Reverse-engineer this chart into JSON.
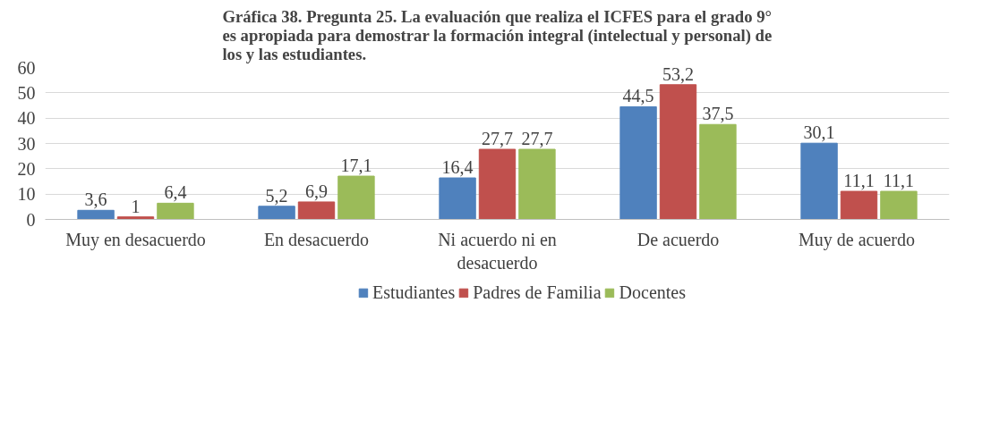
{
  "chart_data": {
    "type": "bar",
    "title": "Gráfica 38. Pregunta 25. La evaluación que realiza el ICFES para el grado 9° es apropiada para demostrar la formación integral (intelectual y personal) de los y las estudiantes.",
    "categories": [
      "Muy en desacuerdo",
      "En desacuerdo",
      "Ni acuerdo ni en desacuerdo",
      "De acuerdo",
      "Muy  de acuerdo"
    ],
    "series": [
      {
        "name": "Estudiantes",
        "color": "#4f81bd",
        "values": [
          3.6,
          5.2,
          16.4,
          44.5,
          30.1
        ],
        "value_labels": [
          "3,6",
          "5,2",
          "16,4",
          "44,5",
          "30,1"
        ]
      },
      {
        "name": "Padres de Familia",
        "color": "#c0504d",
        "values": [
          1,
          6.9,
          27.7,
          53.2,
          11.1
        ],
        "value_labels": [
          "1",
          "6,9",
          "27,7",
          "53,2",
          "11,1"
        ]
      },
      {
        "name": "Docentes",
        "color": "#9bbb59",
        "values": [
          6.4,
          17.1,
          27.7,
          37.5,
          11.1
        ],
        "value_labels": [
          "6,4",
          "17,1",
          "27,7",
          "37,5",
          "11,1"
        ]
      }
    ],
    "ylim": [
      0,
      60
    ],
    "yticks": [
      0,
      10,
      20,
      30,
      40,
      50,
      60
    ],
    "grid": "y",
    "legend": "bottom"
  }
}
